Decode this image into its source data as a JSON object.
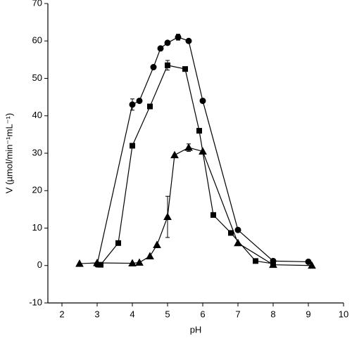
{
  "chart_data": {
    "type": "line",
    "x_label": "pH",
    "y_label": "V (µmol/min⁻¹mL⁻¹)",
    "xlim": [
      1.6,
      10
    ],
    "xticks": [
      2,
      3,
      4,
      5,
      6,
      7,
      8,
      9,
      10
    ],
    "ylim": [
      -10,
      70
    ],
    "yticks": [
      -10,
      0,
      10,
      20,
      30,
      40,
      50,
      60,
      70
    ],
    "series": [
      {
        "color": "#000000",
        "marker": "circle",
        "x": [
          3.0,
          4.0,
          4.2,
          4.6,
          4.8,
          5.0,
          5.3,
          5.6,
          6.0,
          7.0,
          8.0,
          9.0
        ],
        "values": [
          0.3,
          43,
          44,
          53,
          58,
          59.5,
          61,
          60,
          44,
          9.5,
          1.2,
          1
        ],
        "errors": [
          0,
          1.5,
          0,
          0,
          0,
          0,
          0.8,
          0,
          0,
          0,
          0,
          0
        ]
      },
      {
        "color": "#000000",
        "marker": "square",
        "x": [
          3.1,
          3.6,
          4.0,
          4.5,
          5.0,
          5.5,
          5.9,
          6.3,
          6.8,
          7.5,
          8.0
        ],
        "values": [
          0.2,
          6,
          32,
          42.5,
          53.5,
          52.5,
          36,
          13.5,
          8.7,
          1.2,
          0.5
        ],
        "errors": [
          0,
          0,
          0,
          0,
          1.3,
          0,
          0,
          0,
          0,
          0,
          0
        ]
      },
      {
        "color": "#000000",
        "marker": "triangle",
        "x": [
          2.5,
          3.0,
          4.0,
          4.2,
          4.5,
          4.7,
          5.0,
          5.2,
          5.6,
          6.0,
          7.0,
          8.0,
          9.1
        ],
        "values": [
          0.5,
          0.7,
          0.6,
          0.8,
          2.5,
          5.5,
          13,
          29.5,
          31.5,
          30.5,
          6,
          0.2,
          0
        ],
        "errors": [
          0,
          0,
          0,
          0,
          0,
          0,
          5.5,
          0,
          1,
          0,
          0,
          0,
          0
        ]
      }
    ]
  }
}
